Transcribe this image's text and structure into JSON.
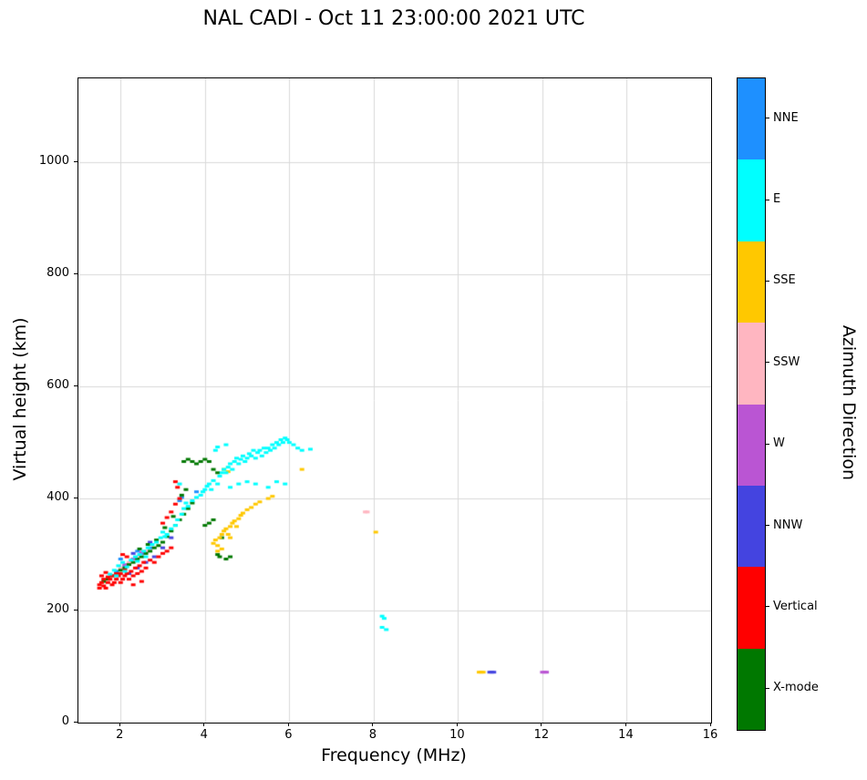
{
  "chart_data": {
    "type": "scatter",
    "title": "NAL CADI - Oct 11 23:00:00 2021 UTC",
    "xlabel": "Frequency (MHz)",
    "ylabel": "Virtual height (km)",
    "xlim": [
      1,
      16
    ],
    "ylim": [
      0,
      1150
    ],
    "xticks": [
      2,
      4,
      6,
      8,
      10,
      12,
      14,
      16
    ],
    "yticks": [
      0,
      200,
      400,
      600,
      800,
      1000
    ],
    "grid": true,
    "grid_color": "#d9d9d9",
    "marker": {
      "width": 5,
      "height": 3
    },
    "colorbar": {
      "label": "Azimuth Direction",
      "entries": [
        {
          "label": "NNE",
          "color": "#1E90FF"
        },
        {
          "label": "E",
          "color": "#00FFFF"
        },
        {
          "label": "SSE",
          "color": "#FFC800"
        },
        {
          "label": "SSW",
          "color": "#FFB6C1"
        },
        {
          "label": "W",
          "color": "#BA55D3"
        },
        {
          "label": "NNW",
          "color": "#4444E0"
        },
        {
          "label": "Vertical",
          "color": "#FF0000"
        },
        {
          "label": "X-mode",
          "color": "#007800"
        }
      ]
    },
    "series": [
      {
        "name": "NNE",
        "color": "#1E90FF",
        "points": [
          [
            1.9,
            270
          ],
          [
            2.1,
            280
          ],
          [
            2.3,
            292
          ],
          [
            2.5,
            302
          ],
          [
            2.7,
            312
          ],
          [
            3.4,
            396
          ],
          [
            3.45,
            402
          ],
          [
            2.0,
            292
          ],
          [
            2.4,
            306
          ],
          [
            3.8,
            412
          ]
        ]
      },
      {
        "name": "SSW",
        "color": "#FFB6C1",
        "points": [
          [
            2.0,
            276
          ],
          [
            2.2,
            286
          ],
          [
            7.8,
            376
          ],
          [
            7.85,
            376
          ],
          [
            2.4,
            296
          ],
          [
            2.6,
            306
          ]
        ]
      },
      {
        "name": "W",
        "color": "#BA55D3",
        "points": [
          [
            2.1,
            282
          ],
          [
            2.3,
            292
          ],
          [
            12.0,
            90
          ],
          [
            12.05,
            90
          ],
          [
            12.1,
            90
          ],
          [
            2.5,
            304
          ]
        ]
      },
      {
        "name": "NNW",
        "color": "#4444E0",
        "points": [
          [
            2.2,
            266
          ],
          [
            2.4,
            276
          ],
          [
            2.6,
            286
          ],
          [
            2.8,
            296
          ],
          [
            3.0,
            312
          ],
          [
            3.2,
            330
          ],
          [
            10.75,
            90
          ],
          [
            10.8,
            90
          ],
          [
            10.85,
            90
          ],
          [
            2.3,
            302
          ],
          [
            2.7,
            322
          ]
        ]
      },
      {
        "name": "X-mode",
        "color": "#007800",
        "points": [
          [
            1.6,
            252
          ],
          [
            1.7,
            256
          ],
          [
            1.8,
            262
          ],
          [
            1.9,
            266
          ],
          [
            2.0,
            272
          ],
          [
            2.1,
            276
          ],
          [
            2.2,
            282
          ],
          [
            2.3,
            286
          ],
          [
            2.4,
            292
          ],
          [
            2.5,
            296
          ],
          [
            2.6,
            302
          ],
          [
            2.7,
            306
          ],
          [
            2.8,
            312
          ],
          [
            2.9,
            316
          ],
          [
            3.0,
            322
          ],
          [
            3.1,
            332
          ],
          [
            3.2,
            342
          ],
          [
            3.3,
            352
          ],
          [
            3.4,
            362
          ],
          [
            3.5,
            372
          ],
          [
            3.6,
            382
          ],
          [
            3.7,
            392
          ],
          [
            3.5,
            466
          ],
          [
            3.6,
            470
          ],
          [
            3.7,
            466
          ],
          [
            3.8,
            462
          ],
          [
            3.9,
            466
          ],
          [
            4.0,
            470
          ],
          [
            4.1,
            466
          ],
          [
            4.2,
            452
          ],
          [
            4.3,
            446
          ],
          [
            4.0,
            352
          ],
          [
            4.1,
            356
          ],
          [
            4.2,
            362
          ],
          [
            4.3,
            300
          ],
          [
            4.35,
            296
          ],
          [
            4.4,
            330
          ],
          [
            4.5,
            292
          ],
          [
            4.6,
            296
          ],
          [
            2.45,
            310
          ],
          [
            2.65,
            318
          ],
          [
            2.85,
            326
          ],
          [
            3.05,
            348
          ],
          [
            3.25,
            368
          ],
          [
            3.45,
            406
          ],
          [
            3.55,
            416
          ]
        ]
      },
      {
        "name": "Vertical",
        "color": "#FF0000",
        "points": [
          [
            1.5,
            240
          ],
          [
            1.5,
            246
          ],
          [
            1.55,
            250
          ],
          [
            1.6,
            244
          ],
          [
            1.6,
            256
          ],
          [
            1.65,
            240
          ],
          [
            1.7,
            250
          ],
          [
            1.7,
            260
          ],
          [
            1.75,
            256
          ],
          [
            1.8,
            246
          ],
          [
            1.8,
            262
          ],
          [
            1.85,
            250
          ],
          [
            1.9,
            256
          ],
          [
            1.9,
            266
          ],
          [
            1.95,
            262
          ],
          [
            2.0,
            250
          ],
          [
            2.0,
            266
          ],
          [
            2.05,
            256
          ],
          [
            2.1,
            262
          ],
          [
            2.1,
            272
          ],
          [
            2.15,
            266
          ],
          [
            2.2,
            256
          ],
          [
            2.25,
            270
          ],
          [
            2.3,
            262
          ],
          [
            2.35,
            276
          ],
          [
            2.4,
            266
          ],
          [
            2.45,
            280
          ],
          [
            2.5,
            270
          ],
          [
            2.55,
            286
          ],
          [
            2.6,
            276
          ],
          [
            2.7,
            290
          ],
          [
            2.8,
            286
          ],
          [
            2.9,
            296
          ],
          [
            3.0,
            302
          ],
          [
            3.1,
            306
          ],
          [
            3.2,
            312
          ],
          [
            3.0,
            356
          ],
          [
            3.1,
            366
          ],
          [
            3.2,
            376
          ],
          [
            3.3,
            430
          ],
          [
            3.35,
            420
          ],
          [
            2.3,
            246
          ],
          [
            2.5,
            252
          ],
          [
            1.55,
            262
          ],
          [
            1.65,
            268
          ],
          [
            3.3,
            390
          ],
          [
            3.4,
            400
          ],
          [
            2.05,
            300
          ],
          [
            2.15,
            296
          ]
        ]
      },
      {
        "name": "SSE",
        "color": "#FFC800",
        "points": [
          [
            4.2,
            320
          ],
          [
            4.25,
            326
          ],
          [
            4.3,
            316
          ],
          [
            4.35,
            330
          ],
          [
            4.4,
            336
          ],
          [
            4.45,
            342
          ],
          [
            4.5,
            346
          ],
          [
            4.55,
            336
          ],
          [
            4.6,
            350
          ],
          [
            4.65,
            356
          ],
          [
            4.7,
            360
          ],
          [
            4.75,
            350
          ],
          [
            4.8,
            364
          ],
          [
            4.85,
            370
          ],
          [
            4.9,
            374
          ],
          [
            5.0,
            380
          ],
          [
            5.1,
            384
          ],
          [
            5.2,
            390
          ],
          [
            5.3,
            394
          ],
          [
            5.5,
            400
          ],
          [
            5.6,
            404
          ],
          [
            4.45,
            452
          ],
          [
            4.55,
            448
          ],
          [
            6.3,
            452
          ],
          [
            8.05,
            340
          ],
          [
            10.5,
            90
          ],
          [
            10.55,
            90
          ],
          [
            10.6,
            90
          ],
          [
            4.3,
            306
          ],
          [
            4.4,
            310
          ],
          [
            4.6,
            330
          ]
        ]
      },
      {
        "name": "E",
        "color": "#00FFFF",
        "points": [
          [
            1.75,
            265
          ],
          [
            1.85,
            272
          ],
          [
            1.95,
            280
          ],
          [
            2.05,
            286
          ],
          [
            2.15,
            278
          ],
          [
            2.25,
            290
          ],
          [
            2.35,
            296
          ],
          [
            2.45,
            300
          ],
          [
            2.55,
            306
          ],
          [
            2.65,
            312
          ],
          [
            2.75,
            318
          ],
          [
            2.85,
            322
          ],
          [
            2.95,
            330
          ],
          [
            3.0,
            340
          ],
          [
            3.1,
            336
          ],
          [
            3.2,
            346
          ],
          [
            3.3,
            352
          ],
          [
            3.35,
            362
          ],
          [
            3.45,
            372
          ],
          [
            3.5,
            382
          ],
          [
            3.55,
            392
          ],
          [
            3.6,
            386
          ],
          [
            3.7,
            396
          ],
          [
            3.8,
            402
          ],
          [
            3.9,
            406
          ],
          [
            3.95,
            412
          ],
          [
            4.0,
            416
          ],
          [
            4.05,
            422
          ],
          [
            4.1,
            426
          ],
          [
            4.15,
            416
          ],
          [
            4.2,
            432
          ],
          [
            4.25,
            486
          ],
          [
            4.3,
            426
          ],
          [
            4.3,
            492
          ],
          [
            4.35,
            440
          ],
          [
            4.4,
            446
          ],
          [
            4.45,
            452
          ],
          [
            4.5,
            446
          ],
          [
            4.5,
            496
          ],
          [
            4.55,
            456
          ],
          [
            4.6,
            420
          ],
          [
            4.6,
            462
          ],
          [
            4.65,
            452
          ],
          [
            4.7,
            466
          ],
          [
            4.75,
            472
          ],
          [
            4.8,
            426
          ],
          [
            4.8,
            462
          ],
          [
            4.85,
            470
          ],
          [
            4.9,
            476
          ],
          [
            4.95,
            466
          ],
          [
            5.0,
            430
          ],
          [
            5.0,
            472
          ],
          [
            5.05,
            480
          ],
          [
            5.1,
            476
          ],
          [
            5.15,
            486
          ],
          [
            5.2,
            426
          ],
          [
            5.2,
            472
          ],
          [
            5.25,
            482
          ],
          [
            5.3,
            486
          ],
          [
            5.35,
            476
          ],
          [
            5.4,
            490
          ],
          [
            5.45,
            482
          ],
          [
            5.5,
            420
          ],
          [
            5.5,
            490
          ],
          [
            5.55,
            486
          ],
          [
            5.6,
            496
          ],
          [
            5.65,
            490
          ],
          [
            5.7,
            430
          ],
          [
            5.7,
            500
          ],
          [
            5.75,
            496
          ],
          [
            5.8,
            505
          ],
          [
            5.85,
            500
          ],
          [
            5.9,
            426
          ],
          [
            5.9,
            508
          ],
          [
            5.95,
            505
          ],
          [
            6.0,
            500
          ],
          [
            6.1,
            496
          ],
          [
            6.2,
            490
          ],
          [
            6.3,
            486
          ],
          [
            6.5,
            488
          ],
          [
            8.2,
            190
          ],
          [
            8.25,
            186
          ],
          [
            8.2,
            170
          ],
          [
            8.3,
            166
          ],
          [
            3.4,
            426
          ],
          [
            2.1,
            270
          ],
          [
            2.4,
            288
          ],
          [
            1.9,
            262
          ],
          [
            2.6,
            296
          ],
          [
            3.05,
            332
          ]
        ]
      }
    ]
  }
}
